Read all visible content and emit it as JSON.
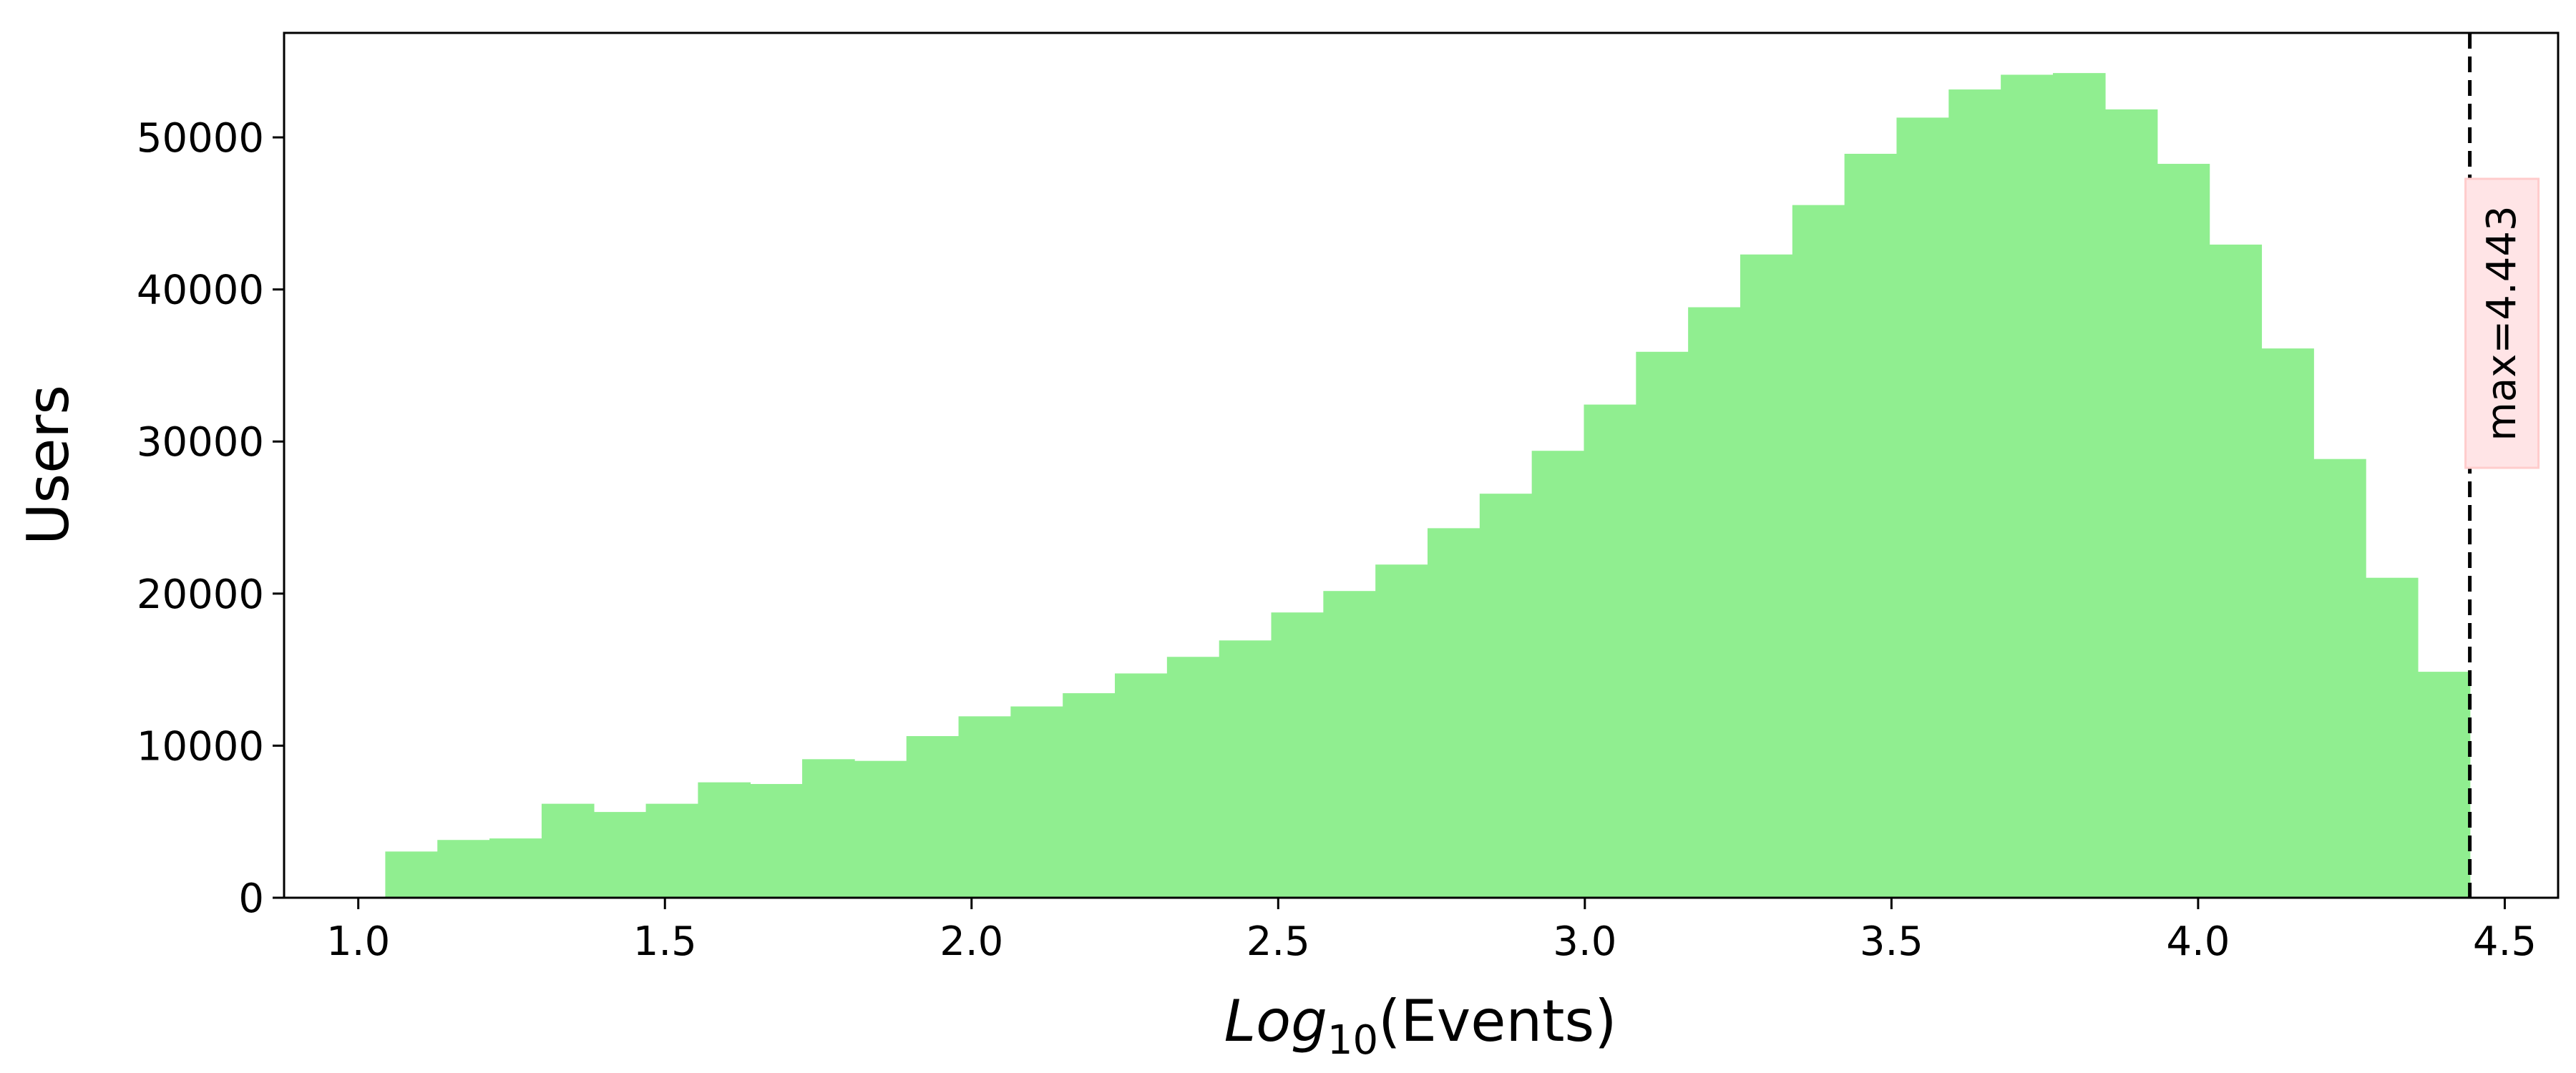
{
  "chart_data": {
    "type": "bar",
    "subtype": "histogram",
    "title": "",
    "xlabel_italic": "Log",
    "xlabel_sub": "10",
    "xlabel_rest": "(Events)",
    "ylabel": "Users",
    "xlim": [
      0.879,
      4.587
    ],
    "ylim": [
      0,
      56870
    ],
    "bar_color": "#90ee90",
    "grid": false,
    "bin_start": 1.044,
    "bin_end": 4.443,
    "values": [
      3040,
      3800,
      3900,
      6180,
      5640,
      6180,
      7590,
      7480,
      9110,
      9000,
      10630,
      11930,
      12580,
      13450,
      14750,
      15840,
      16920,
      18760,
      20170,
      21910,
      24300,
      26570,
      29390,
      32430,
      35900,
      38830,
      42300,
      45550,
      48920,
      51300,
      53150,
      54120,
      54230,
      51840,
      48260,
      42950,
      36120,
      28850,
      21040,
      14860
    ],
    "xticks": [
      1.0,
      1.5,
      2.0,
      2.5,
      3.0,
      3.5,
      4.0,
      4.5
    ],
    "xtick_labels": [
      "1.0",
      "1.5",
      "2.0",
      "2.5",
      "3.0",
      "3.5",
      "4.0",
      "4.5"
    ],
    "yticks": [
      0,
      10000,
      20000,
      30000,
      40000,
      50000
    ],
    "ytick_labels": [
      "0",
      "10000",
      "20000",
      "30000",
      "40000",
      "50000"
    ],
    "vline": {
      "x": 4.443,
      "style": "dashed",
      "color": "#000000"
    },
    "annotation": {
      "text": "max=4.443",
      "box_color": "#ffe4e6",
      "box_edge": "#ffcccc"
    }
  }
}
